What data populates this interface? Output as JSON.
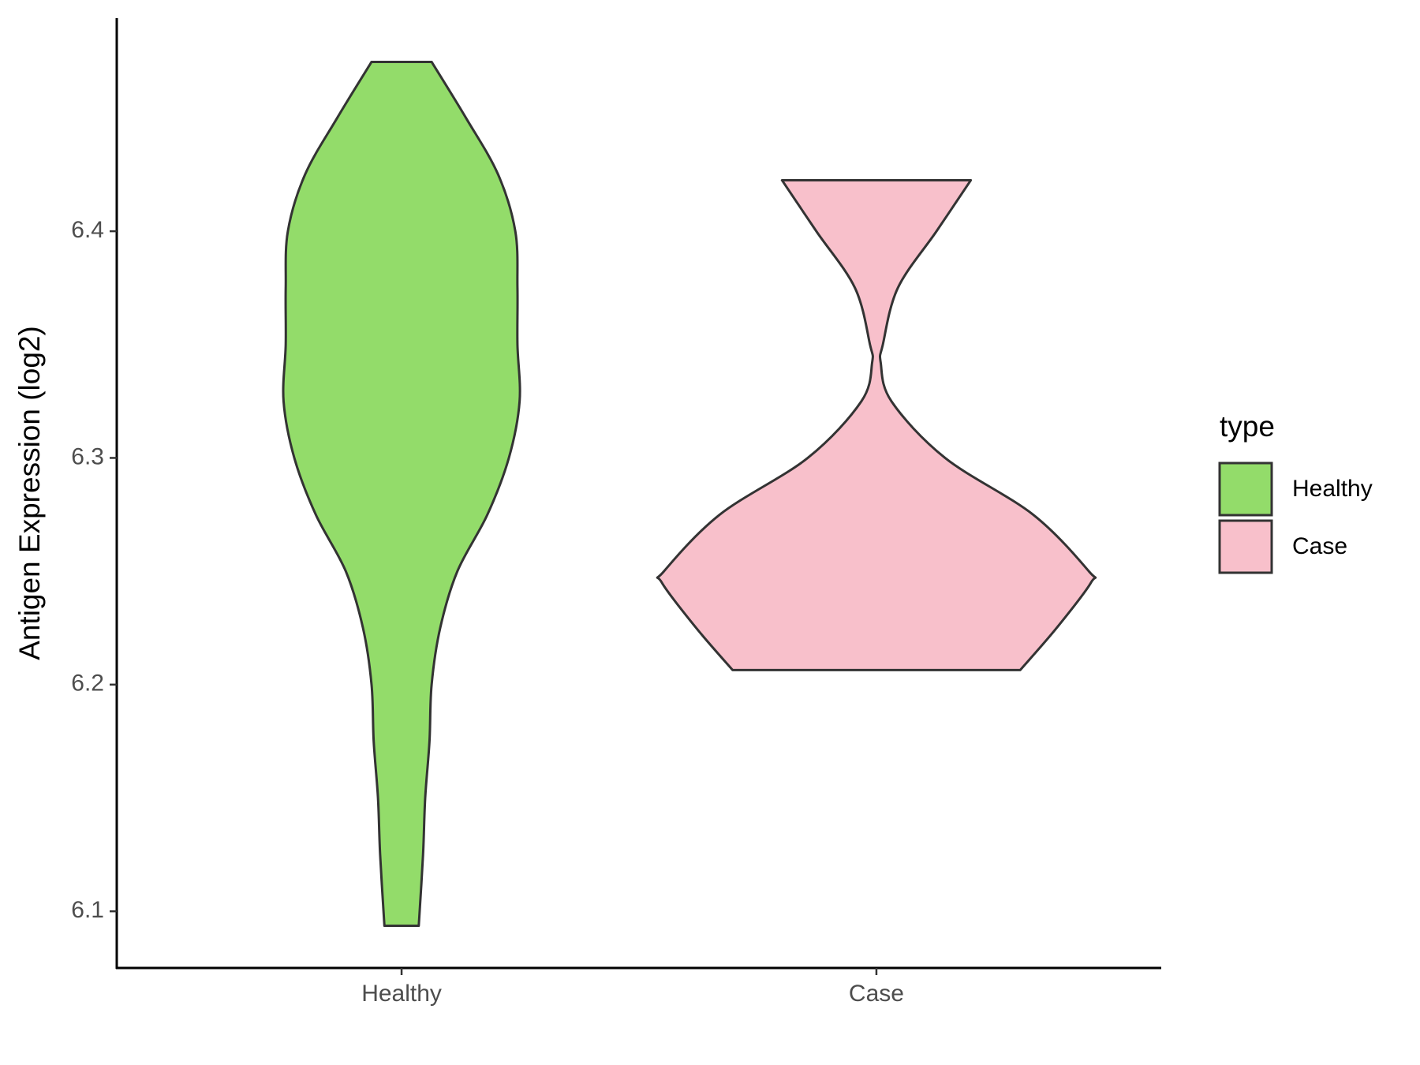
{
  "chart_data": {
    "type": "violin",
    "y_label": "Antigen Expression (log2)",
    "categories": [
      "Healthy",
      "Case"
    ],
    "series": [
      {
        "name": "Healthy",
        "color": "#93dc6a",
        "y": [
          6.4747,
          6.45,
          6.425,
          6.4,
          6.375,
          6.35,
          6.325,
          6.3,
          6.275,
          6.25,
          6.225,
          6.2,
          6.175,
          6.15,
          6.125,
          6.0936
        ],
        "density": [
          0.14,
          0.3,
          0.45,
          0.53,
          0.54,
          0.54,
          0.55,
          0.5,
          0.4,
          0.26,
          0.18,
          0.14,
          0.13,
          0.11,
          0.1,
          0.08
        ]
      },
      {
        "name": "Case",
        "color": "#f8c0cb",
        "y": [
          6.4225,
          6.4,
          6.375,
          6.35,
          6.342,
          6.325,
          6.3,
          6.275,
          6.25,
          6.245,
          6.225,
          6.2064
        ],
        "density": [
          0.44,
          0.28,
          0.1,
          0.03,
          0.02,
          0.07,
          0.32,
          0.73,
          0.99,
          1.0,
          0.84,
          0.67
        ]
      }
    ],
    "ylim": [
      6.075,
      6.494
    ],
    "yticks": [
      6.1,
      6.2,
      6.3,
      6.4
    ],
    "legend_title": "type",
    "legend": "right"
  }
}
